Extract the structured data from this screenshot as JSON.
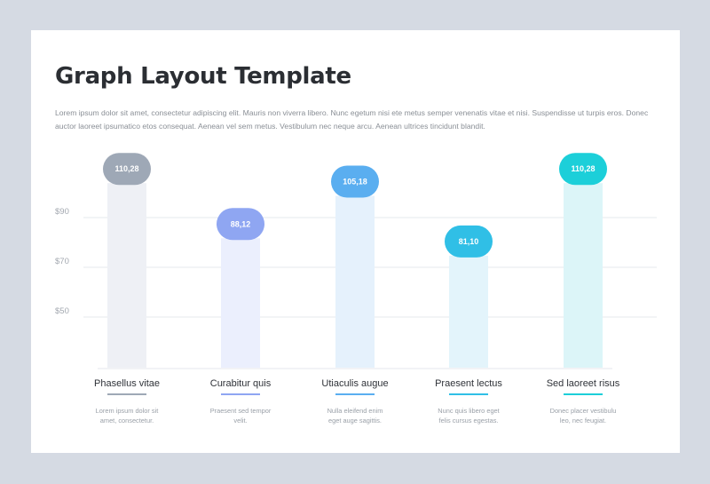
{
  "title": "Graph Layout Template",
  "description": "Lorem ipsum dolor sit amet, consectetur adipiscing elit. Mauris non viverra libero. Nunc egetum nisi ete metus semper venenatis vitae et nisi. Suspendisse ut turpis eros. Donec auctor laoreet ipsumatico etos consequat. Aenean vel sem metus. Vestibulum nec neque arcu. Aenean ultrices tincidunt blandit.",
  "chart_data": {
    "type": "bar",
    "categories": [
      "Phasellus vitae",
      "Curabitur quis",
      "Utiaculis augue",
      "Praesent lectus",
      "Sed laoreet risus"
    ],
    "values": [
      110.28,
      88.12,
      105.18,
      81.1,
      110.28
    ],
    "value_labels": [
      "110,28",
      "88,12",
      "105,18",
      "81,10",
      "110,28"
    ],
    "category_descriptions": [
      [
        "Lorem ipsum dolor sit",
        "amet, consectetur."
      ],
      [
        "Praesent sed tempor",
        "velit."
      ],
      [
        "Nulla eleifend enim",
        "eget auge sagittis."
      ],
      [
        "Nunc quis libero eget",
        "felis cursus egestas."
      ],
      [
        "Donec placer vestibulu",
        "leo, nec feugiat."
      ]
    ],
    "y_ticks": [
      {
        "value": 90,
        "label": "$90"
      },
      {
        "value": 70,
        "label": "$70"
      },
      {
        "value": 50,
        "label": "$50"
      }
    ],
    "grid": true,
    "colors": {
      "bubbles": [
        "#9ea8b6",
        "#8fa6f2",
        "#5aaef0",
        "#30bfe6",
        "#1ccfd9"
      ],
      "columns": [
        "#eef0f5",
        "#ebeffd",
        "#e5f1fc",
        "#e3f4fb",
        "#dcf5f8"
      ],
      "underlines": [
        "#9ea8b6",
        "#8fa6f2",
        "#5aaef0",
        "#30bfe6",
        "#1ccfd9"
      ]
    }
  }
}
